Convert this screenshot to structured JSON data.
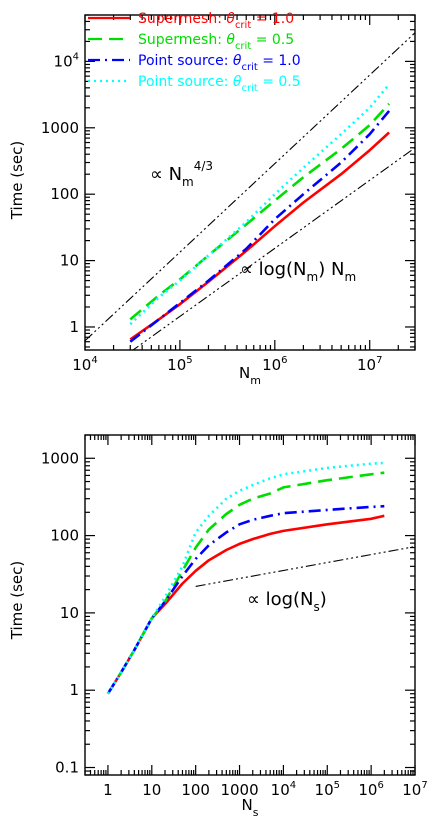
{
  "chart_data": [
    {
      "type": "line",
      "xscale": "log",
      "yscale": "log",
      "xlim": [
        10000,
        30000000
      ],
      "ylim": [
        0.45,
        50000
      ],
      "xticks": [
        {
          "value": 10000,
          "base": "10",
          "exp": "4"
        },
        {
          "value": 100000,
          "base": "10",
          "exp": "5"
        },
        {
          "value": 1000000,
          "base": "10",
          "exp": "6"
        },
        {
          "value": 10000000,
          "base": "10",
          "exp": "7"
        }
      ],
      "yticks": [
        {
          "value": 1,
          "label": "1"
        },
        {
          "value": 10,
          "label": "10"
        },
        {
          "value": 100,
          "label": "100"
        },
        {
          "value": 1000,
          "label": "1000"
        },
        {
          "value": 10000,
          "base": "10",
          "exp": "4"
        }
      ],
      "xlabel": {
        "main": "N",
        "sub": "m"
      },
      "ylabel": "Time (sec)",
      "legend": {
        "placement": "top-left",
        "entries": [
          {
            "prefix": "Supermesh: ",
            "symbol": "θ",
            "sub": "crit",
            "suffix": " = 1.0"
          },
          {
            "prefix": "Supermesh: ",
            "symbol": "θ",
            "sub": "crit",
            "suffix": " = 0.5"
          },
          {
            "prefix": "Point source: ",
            "symbol": "θ",
            "sub": "crit",
            "suffix": " = 1.0"
          },
          {
            "prefix": "Point source: ",
            "symbol": "θ",
            "sub": "crit",
            "suffix": " = 0.5"
          }
        ]
      },
      "series": [
        {
          "color": "#ff0000",
          "dash": "solid",
          "x": [
            30000,
            60000,
            100000,
            200000,
            500000,
            1000000,
            2000000,
            5000000,
            10000000,
            16000000
          ],
          "y": [
            0.65,
            1.3,
            2.2,
            4.8,
            14,
            33,
            75,
            200,
            460,
            850
          ]
        },
        {
          "color": "#00dd00",
          "dash": "dashed",
          "x": [
            30000,
            60000,
            100000,
            200000,
            500000,
            1000000,
            2000000,
            5000000,
            10000000,
            16000000
          ],
          "y": [
            1.3,
            3.0,
            5.2,
            12,
            35,
            80,
            180,
            480,
            1100,
            2300
          ]
        },
        {
          "color": "#0000ff",
          "dash": "dashdot",
          "x": [
            30000,
            60000,
            100000,
            200000,
            500000,
            1000000,
            2000000,
            5000000,
            10000000,
            16000000
          ],
          "y": [
            0.6,
            1.3,
            2.3,
            5.0,
            15,
            42,
            100,
            300,
            800,
            1800
          ]
        },
        {
          "color": "#00ffff",
          "dash": "dotted",
          "x": [
            30000,
            60000,
            100000,
            200000,
            500000,
            1000000,
            2000000,
            5000000,
            10000000,
            16000000
          ],
          "y": [
            1.1,
            2.8,
            5.0,
            12,
            38,
            100,
            250,
            800,
            2000,
            4500
          ]
        }
      ],
      "reference_lines": [
        {
          "label": "∝ N",
          "label_sub": "m",
          "label_sup": "4/3",
          "x": [
            10000,
            30000000
          ],
          "y": [
            0.62,
            27000
          ]
        },
        {
          "label": "∝ log(N",
          "label_sub": "m",
          "label_tail": ") N",
          "label_tail_sub": "m",
          "x": [
            30000,
            30000000
          ],
          "y": [
            0.42,
            500
          ]
        }
      ]
    },
    {
      "type": "line",
      "xscale": "log",
      "yscale": "log",
      "xlim": [
        0.3,
        10000000
      ],
      "ylim": [
        0.08,
        2000
      ],
      "xticks": [
        {
          "value": 1,
          "label": "1"
        },
        {
          "value": 10,
          "label": "10"
        },
        {
          "value": 100,
          "label": "100"
        },
        {
          "value": 1000,
          "label": "1000"
        },
        {
          "value": 10000,
          "base": "10",
          "exp": "4"
        },
        {
          "value": 100000,
          "base": "10",
          "exp": "5"
        },
        {
          "value": 1000000,
          "base": "10",
          "exp": "6"
        },
        {
          "value": 10000000,
          "base": "10",
          "exp": "7"
        }
      ],
      "yticks": [
        {
          "value": 0.1,
          "label": "0.1"
        },
        {
          "value": 1,
          "label": "1"
        },
        {
          "value": 10,
          "label": "10"
        },
        {
          "value": 100,
          "label": "100"
        },
        {
          "value": 1000,
          "label": "1000"
        }
      ],
      "xlabel": {
        "main": "N",
        "sub": "s"
      },
      "ylabel": "Time (sec)",
      "series": [
        {
          "color": "#ff0000",
          "dash": "solid",
          "x": [
            1,
            2,
            4,
            10,
            20,
            50,
            100,
            200,
            500,
            1000,
            2000,
            5000,
            10000,
            100000,
            1000000,
            2000000
          ],
          "y": [
            0.9,
            1.7,
            3.3,
            8.5,
            13,
            24,
            35,
            48,
            65,
            78,
            90,
            105,
            115,
            140,
            165,
            180
          ]
        },
        {
          "color": "#00dd00",
          "dash": "dashed",
          "x": [
            1,
            2,
            4,
            10,
            20,
            50,
            100,
            200,
            500,
            1000,
            2000,
            5000,
            10000,
            100000,
            1000000,
            2000000
          ],
          "y": [
            0.9,
            1.7,
            3.3,
            8.5,
            14,
            35,
            70,
            120,
            190,
            250,
            300,
            350,
            420,
            520,
            620,
            650
          ]
        },
        {
          "color": "#0000ff",
          "dash": "dashdot",
          "x": [
            1,
            2,
            4,
            10,
            20,
            50,
            100,
            200,
            500,
            1000,
            2000,
            5000,
            10000,
            100000,
            1000000,
            2000000
          ],
          "y": [
            0.9,
            1.7,
            3.3,
            8.5,
            14,
            30,
            50,
            75,
            110,
            140,
            160,
            180,
            195,
            215,
            235,
            240
          ]
        },
        {
          "color": "#00ffff",
          "dash": "dotted",
          "x": [
            1,
            2,
            4,
            10,
            20,
            50,
            100,
            200,
            500,
            1000,
            2000,
            5000,
            10000,
            100000,
            1000000,
            2000000
          ],
          "y": [
            0.9,
            1.7,
            3.3,
            8.5,
            16,
            40,
            110,
            180,
            300,
            380,
            450,
            550,
            620,
            750,
            850,
            870
          ]
        }
      ],
      "reference_lines": [
        {
          "label": "∝ log(N",
          "label_sub": "s",
          "label_tail": ")",
          "x": [
            100,
            10000000
          ],
          "y": [
            22,
            72
          ]
        }
      ]
    }
  ]
}
